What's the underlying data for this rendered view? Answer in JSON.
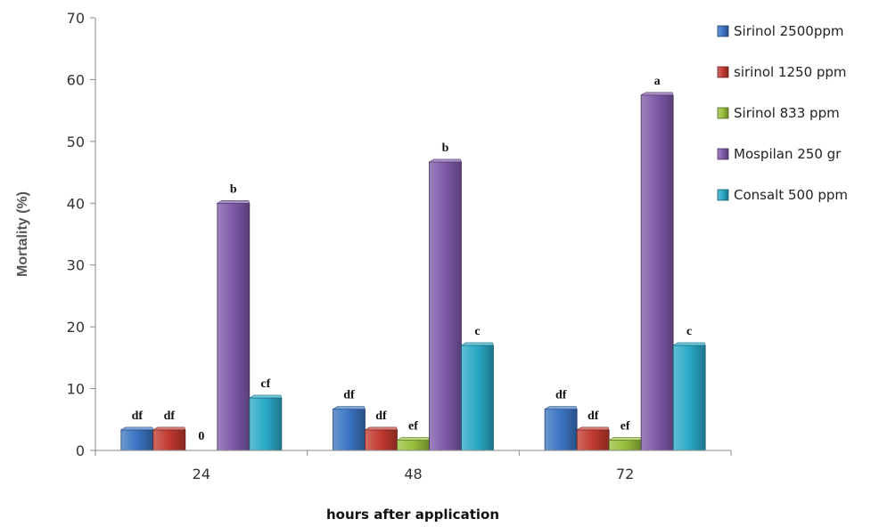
{
  "chart_data": {
    "type": "bar",
    "title": "",
    "xlabel": "hours after application",
    "ylabel": "Mortality (%)",
    "ylim": [
      0,
      70
    ],
    "yticks": [
      0,
      10,
      20,
      30,
      40,
      50,
      60,
      70
    ],
    "categories": [
      "24",
      "48",
      "72"
    ],
    "legend_position": "right",
    "series": [
      {
        "name": "Sirinol 2500ppm",
        "color": "#3a74c2",
        "values": [
          3.33,
          6.67,
          6.67
        ],
        "labels": [
          "df",
          "df",
          "df"
        ]
      },
      {
        "name": "sirinol 1250 ppm",
        "color": "#c0392f",
        "values": [
          3.33,
          3.33,
          3.33
        ],
        "labels": [
          "df",
          "df",
          "df"
        ]
      },
      {
        "name": "Sirinol 833 ppm",
        "color": "#98bf3a",
        "values": [
          0,
          1.67,
          1.67
        ],
        "labels": [
          "0",
          "ef",
          "ef"
        ]
      },
      {
        "name": "Mospilan 250 gr",
        "color": "#7d59a8",
        "values": [
          40,
          46.67,
          57.5
        ],
        "labels": [
          "b",
          "b",
          "a"
        ]
      },
      {
        "name": "Consalt 500 ppm",
        "color": "#2aa9c6",
        "values": [
          8.5,
          17,
          17
        ],
        "labels": [
          "cf",
          "c",
          "c"
        ]
      }
    ]
  }
}
